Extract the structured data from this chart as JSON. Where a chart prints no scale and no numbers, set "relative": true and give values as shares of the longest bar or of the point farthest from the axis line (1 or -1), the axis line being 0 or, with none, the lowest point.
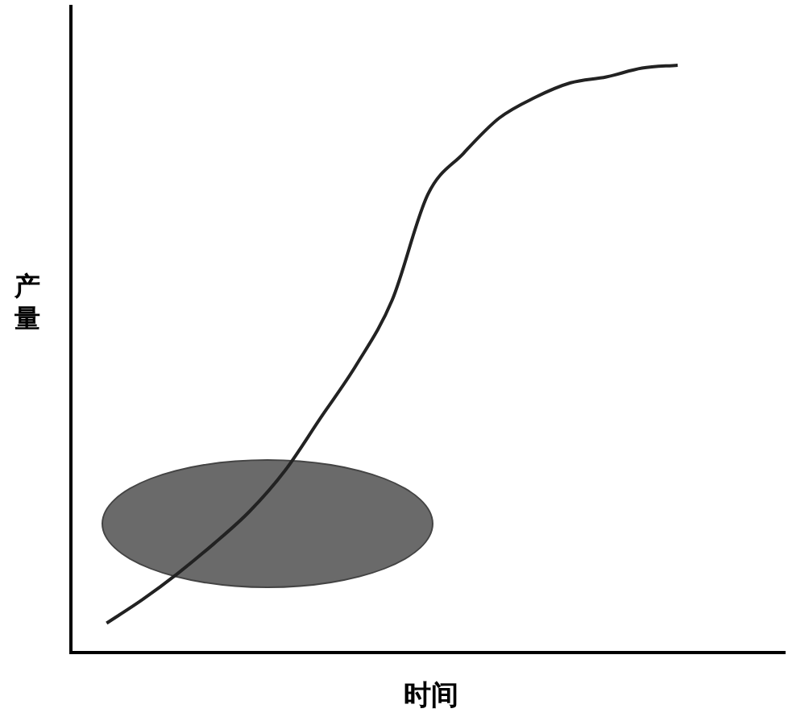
{
  "chart_data": {
    "type": "line",
    "xlabel": "时间",
    "ylabel": "产量",
    "relative": true,
    "categories": [
      null,
      null,
      null,
      null,
      null,
      null,
      null,
      null,
      null,
      null,
      null,
      null,
      null,
      null,
      null,
      null,
      null,
      null,
      null,
      null,
      null
    ],
    "series": [
      {
        "color": "#222222",
        "values": [
          null,
          0.05,
          0.09,
          0.135,
          0.185,
          0.24,
          0.31,
          0.4,
          0.49,
          0.6,
          0.78,
          0.85,
          0.91,
          0.945,
          0.97,
          0.98,
          0.995,
          1,
          null,
          null,
          null
        ]
      }
    ],
    "grid": false,
    "legend": false,
    "tick_labels": false,
    "marker": "none",
    "line_style": "solid"
  }
}
